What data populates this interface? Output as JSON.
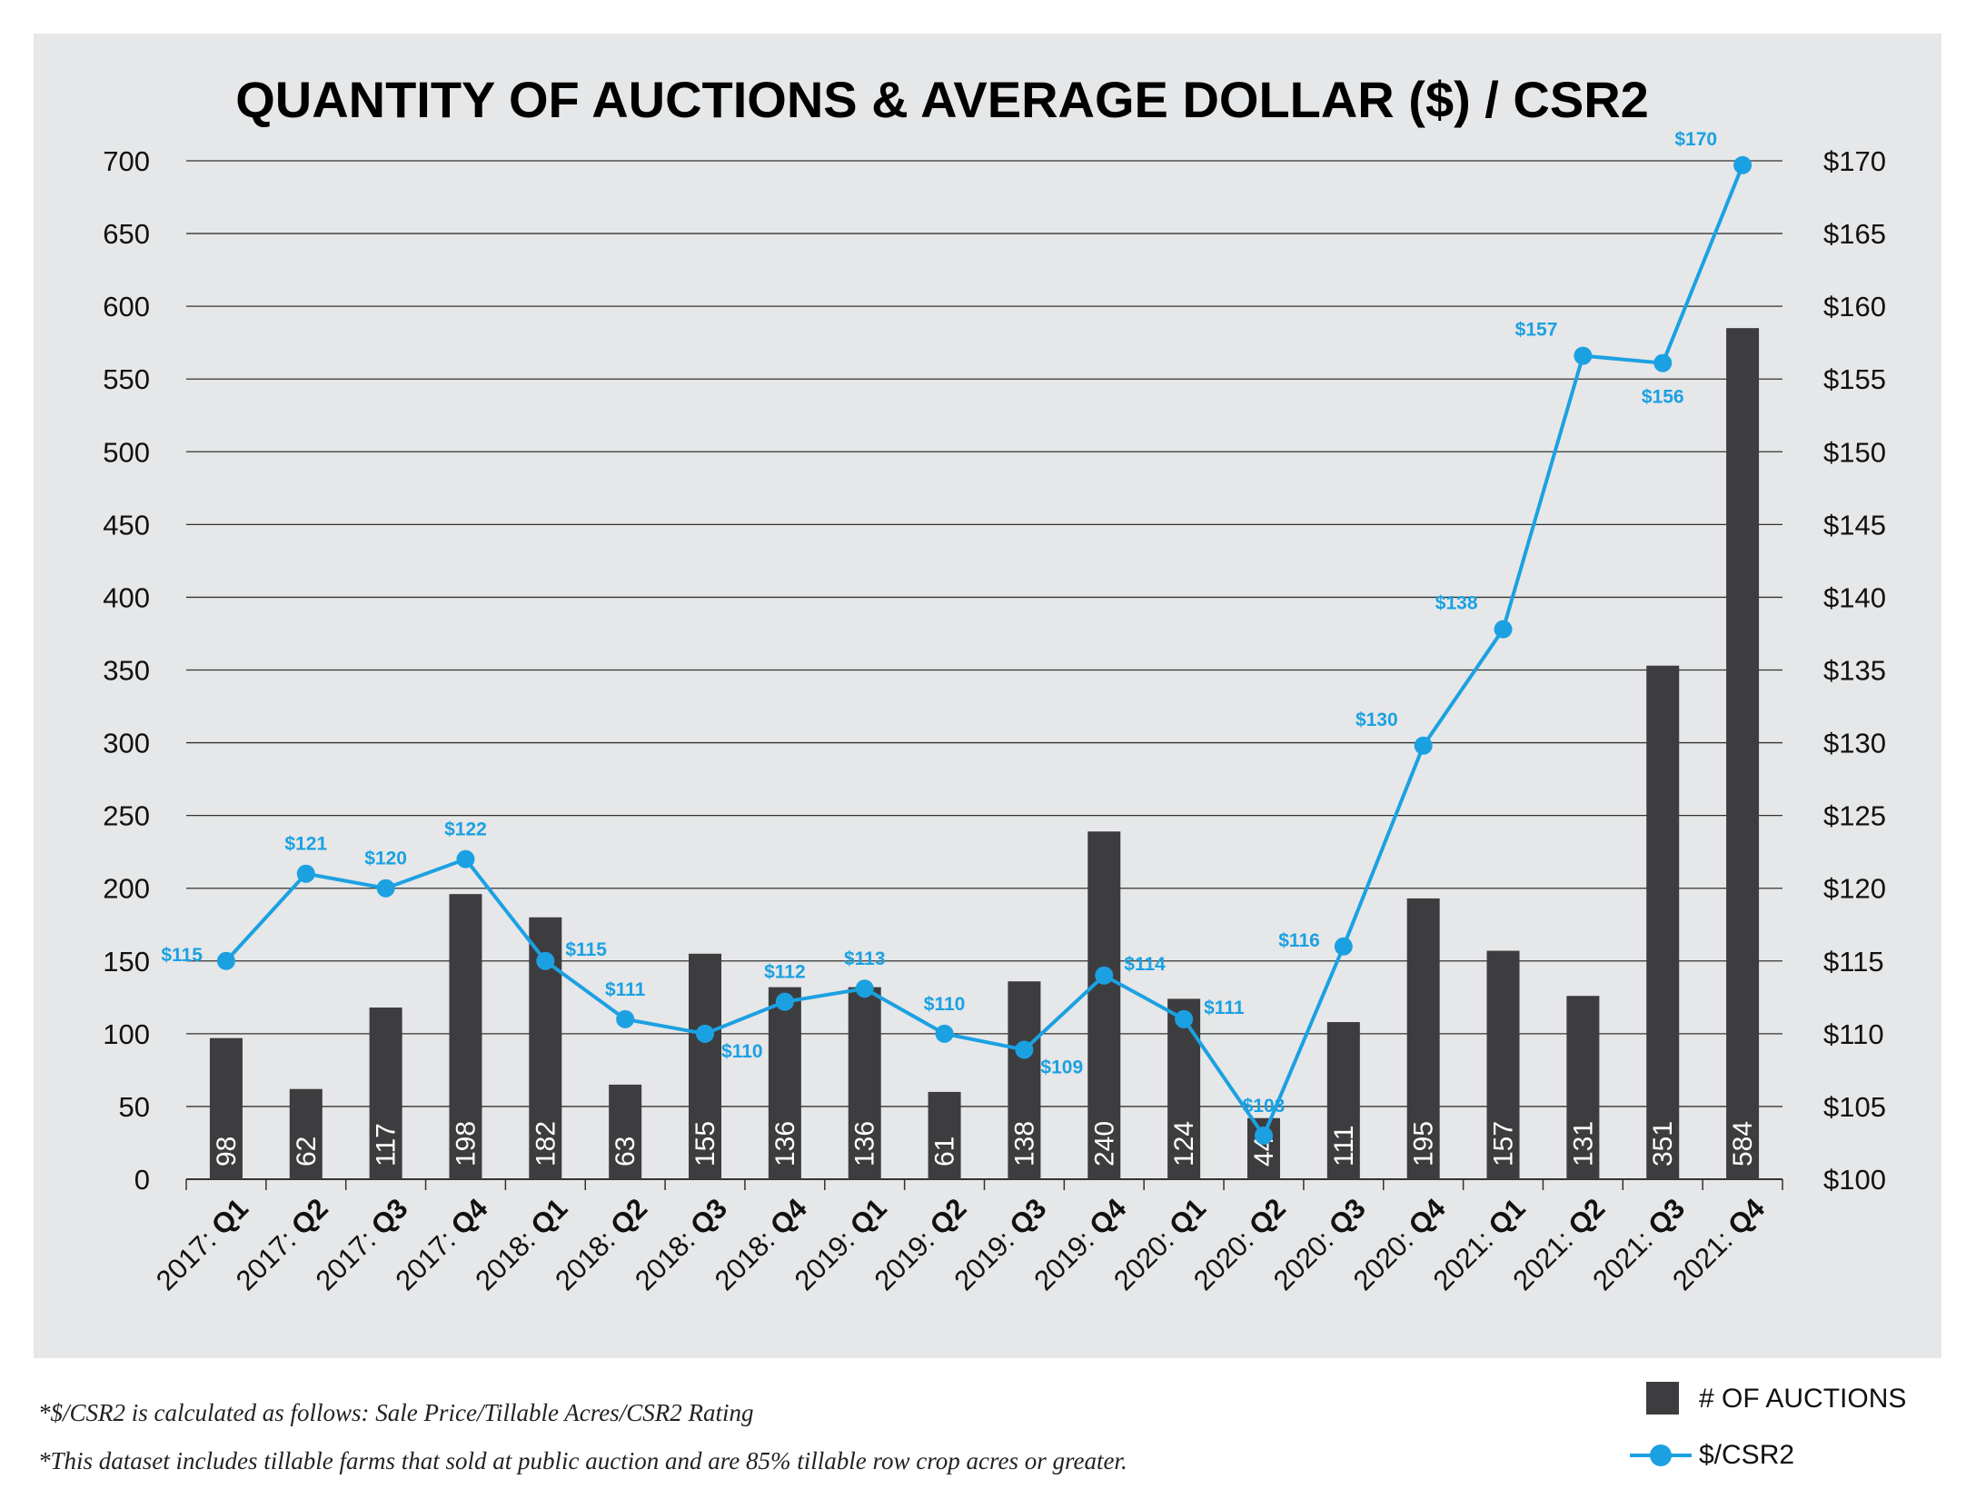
{
  "colors": {
    "panel_bg": "#e6e7e8",
    "bar": "#3d3d3f",
    "line": "#1ba1e2",
    "grid": "#333333"
  },
  "chart_data": {
    "type": "bar",
    "title": "QUANTITY OF AUCTIONS & AVERAGE DOLLAR ($) / CSR2",
    "categories": [
      {
        "year": "2017:",
        "q": "Q1"
      },
      {
        "year": "2017:",
        "q": "Q2"
      },
      {
        "year": "2017:",
        "q": "Q3"
      },
      {
        "year": "2017:",
        "q": "Q4"
      },
      {
        "year": "2018:",
        "q": "Q1"
      },
      {
        "year": "2018:",
        "q": "Q2"
      },
      {
        "year": "2018:",
        "q": "Q3"
      },
      {
        "year": "2018:",
        "q": "Q4"
      },
      {
        "year": "2019:",
        "q": "Q1"
      },
      {
        "year": "2019:",
        "q": "Q2"
      },
      {
        "year": "2019:",
        "q": "Q3"
      },
      {
        "year": "2019:",
        "q": "Q4"
      },
      {
        "year": "2020:",
        "q": "Q1"
      },
      {
        "year": "2020:",
        "q": "Q2"
      },
      {
        "year": "2020:",
        "q": "Q3"
      },
      {
        "year": "2020:",
        "q": "Q4"
      },
      {
        "year": "2021:",
        "q": "Q1"
      },
      {
        "year": "2021:",
        "q": "Q2"
      },
      {
        "year": "2021:",
        "q": "Q3"
      },
      {
        "year": "2021:",
        "q": "Q4"
      }
    ],
    "series": [
      {
        "name": "# OF AUCTIONS",
        "type": "bar",
        "axis": "left",
        "values": [
          98,
          62,
          117,
          198,
          182,
          63,
          155,
          136,
          136,
          61,
          138,
          240,
          124,
          44,
          111,
          195,
          157,
          131,
          351,
          584
        ],
        "bar_heights": [
          97,
          62,
          118,
          196,
          180,
          65,
          155,
          132,
          132,
          60,
          136,
          239,
          124,
          42,
          108,
          193,
          157,
          126,
          353,
          585
        ]
      },
      {
        "name": "$/CSR2",
        "type": "line",
        "axis": "right",
        "values": [
          115,
          121,
          120,
          122,
          115,
          111,
          110,
          112,
          113,
          110,
          109,
          114,
          111,
          103,
          116,
          130,
          138,
          157,
          156,
          170
        ],
        "plotted": [
          115,
          121,
          120,
          122,
          115,
          111,
          110,
          112.2,
          113.1,
          110,
          108.9,
          114,
          111,
          103,
          116,
          129.8,
          137.8,
          156.6,
          156.1,
          169.7
        ],
        "labels": [
          "$115",
          "$121",
          "$120",
          "$122",
          "$115",
          "$111",
          "$110",
          "$112",
          "$113",
          "$110",
          "$109",
          "$114",
          "$111",
          "$103",
          "$116",
          "$130",
          "$138",
          "$157",
          "$156",
          "$170"
        ],
        "label_pos": [
          "left",
          "above",
          "above",
          "above",
          "right",
          "above",
          "below-right",
          "above",
          "above",
          "above",
          "below-right",
          "right",
          "right",
          "above",
          "left",
          "above-left",
          "above-left",
          "above-left",
          "below",
          "above-left"
        ]
      }
    ],
    "y_left": {
      "ylim": [
        0,
        700
      ],
      "ticks": [
        "0",
        "50",
        "100",
        "150",
        "200",
        "250",
        "300",
        "350",
        "400",
        "450",
        "500",
        "550",
        "600",
        "650",
        "700"
      ]
    },
    "y_right": {
      "ylim": [
        100,
        170
      ],
      "ticks": [
        "$100",
        "$105",
        "$110",
        "$115",
        "$120",
        "$125",
        "$130",
        "$135",
        "$140",
        "$145",
        "$150",
        "$155",
        "$160",
        "$165",
        "$170"
      ]
    },
    "grid": true,
    "legend": "bottom-right"
  },
  "footnotes": [
    "*$/CSR2 is calculated as follows: Sale Price/Tillable Acres/CSR2 Rating",
    "*This dataset includes tillable farms that sold at public auction and are 85% tillable row crop acres or greater."
  ],
  "legend": {
    "bar_label": "# OF AUCTIONS",
    "line_label": "$/CSR2"
  }
}
